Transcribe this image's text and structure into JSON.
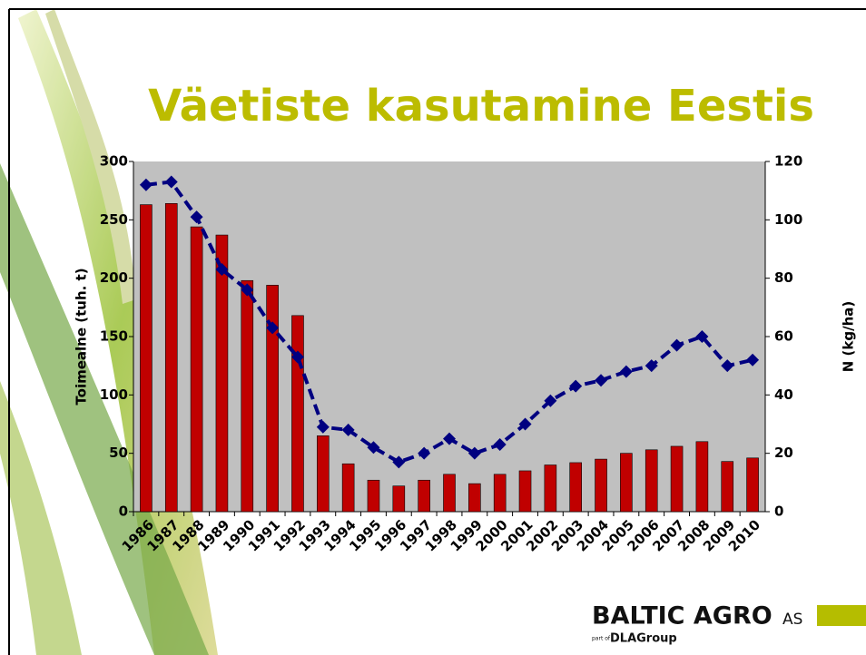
{
  "chart_data": {
    "type": "bar",
    "title": "Väetiste kasutamine Eestis",
    "y_label": "Toimealne (tuh. t)",
    "y2_label": "N (kg/ha)",
    "categories": [
      "1986",
      "1987",
      "1988",
      "1989",
      "1990",
      "1991",
      "1992",
      "1993",
      "1994",
      "1995",
      "1996",
      "1997",
      "1998",
      "1999",
      "2000",
      "2001",
      "2002",
      "2003",
      "2004",
      "2005",
      "2006",
      "2007",
      "2008",
      "2009",
      "2010"
    ],
    "series": [
      {
        "type": "bar",
        "color": "#c00000",
        "values": [
          263,
          264,
          244,
          237,
          198,
          194,
          168,
          65,
          41,
          27,
          22,
          27,
          32,
          24,
          32,
          35,
          40,
          42,
          45,
          50,
          53,
          56,
          60,
          43,
          46
        ]
      },
      {
        "type": "line",
        "axis": "y2",
        "color": "#000080",
        "values": [
          112,
          113,
          101,
          83,
          76,
          63,
          53,
          29,
          28,
          22,
          17,
          20,
          25,
          20,
          23,
          30,
          38,
          43,
          45,
          48,
          50,
          57,
          60,
          50,
          52
        ]
      }
    ],
    "ylim": [
      0,
      300
    ],
    "yticks": [
      0,
      50,
      100,
      150,
      200,
      250,
      300
    ],
    "y2lim": [
      0,
      120
    ],
    "y2ticks": [
      0,
      20,
      40,
      60,
      80,
      100,
      120
    ],
    "plot_background": "#c0c0c0"
  },
  "logo": {
    "name": "BALTIC AGRO",
    "suffix": "AS",
    "part_of": "part of",
    "group": "DLAGroup"
  }
}
